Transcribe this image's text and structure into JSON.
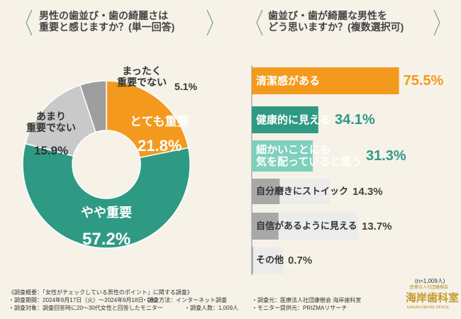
{
  "chart_data": [
    {
      "type": "donut",
      "title": "男性の歯並び・歯の綺麗さは\n重要と感じますか？(単一回答)",
      "categories": [
        "とても重要",
        "やや重要",
        "あまり\n重要でない",
        "まったく\n重要でない"
      ],
      "values": [
        21.8,
        57.2,
        15.9,
        5.1
      ],
      "value_labels": [
        "21.8%",
        "57.2%",
        "15.9%",
        "5.1%"
      ],
      "colors": [
        "#f39a1e",
        "#2e9a84",
        "#c9c9c9",
        "#9e9e9e"
      ]
    },
    {
      "type": "hbar",
      "title": "歯並び・歯が綺麗な男性を\nどう思いますか？(複数選択可)",
      "categories": [
        "清潔感がある",
        "健康的に見える",
        "細かいことにも\n気を配っていると思う",
        "自分磨きにストイック",
        "自信があるように見える",
        "その他"
      ],
      "values": [
        75.5,
        34.1,
        31.3,
        14.3,
        13.7,
        0.7
      ],
      "value_labels": [
        "75.5%",
        "34.1%",
        "31.3%",
        "14.3%",
        "13.7%",
        "0.7%"
      ],
      "colors": [
        "#f39a1e",
        "#2e9a84",
        "#7fd0bd",
        "#d3d3d3",
        "#d3d3d3",
        "#d3d3d3"
      ],
      "note": "(n=1,009人)"
    }
  ],
  "footer": {
    "items": [
      "《調査概要：「女性がチェックしている男性のポイント」に関する調査》",
      "・調査期間：2024年9月17日（火）〜2024年9月18日（水）",
      "・調査方法：インターネット調査",
      "・調査元：医療法人社団康樹会 海岸歯科室",
      "・調査対象：調査回答時に20〜30代女性と回答したモニター",
      "・調査人数：1,009人",
      "・モニター提供元：PRIZMAリサーチ"
    ]
  },
  "logo": {
    "sub": "医療法人社団康樹会",
    "name": "海岸歯科室",
    "en": "KAIGAN DENTAL OFFICE"
  }
}
